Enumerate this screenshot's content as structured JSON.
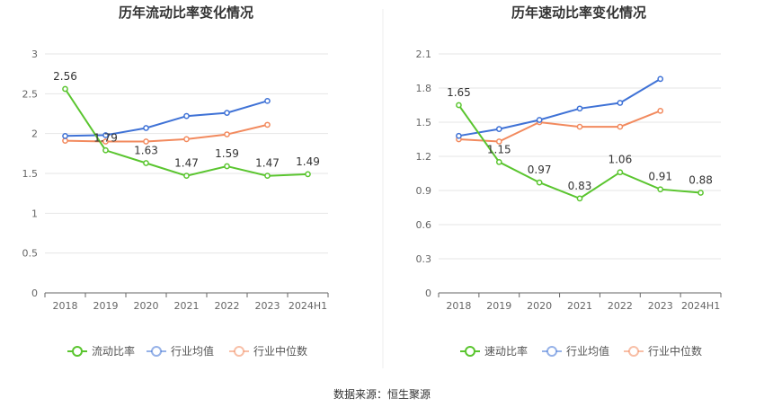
{
  "source_label": "数据来源：恒生聚源",
  "chart_data": [
    {
      "type": "line",
      "title": "历年流动比率变化情况",
      "categories": [
        "2018",
        "2019",
        "2020",
        "2021",
        "2022",
        "2023",
        "2024H1"
      ],
      "ylim": [
        0,
        3
      ],
      "yticks": [
        "0",
        "0.5",
        "1",
        "1.5",
        "2",
        "2.5",
        "3"
      ],
      "grid": true,
      "legend_position": "bottom",
      "series": [
        {
          "name": "流动比率",
          "color": "#5ac52f",
          "values": [
            2.56,
            1.79,
            1.63,
            1.47,
            1.59,
            1.47,
            1.49
          ],
          "labels": [
            "2.56",
            "1.79",
            "1.63",
            "1.47",
            "1.59",
            "1.47",
            "1.49"
          ]
        },
        {
          "name": "行业均值",
          "color": "#3f72d6",
          "values": [
            1.97,
            1.98,
            2.07,
            2.22,
            2.26,
            2.41,
            null
          ]
        },
        {
          "name": "行业中位数",
          "color": "#f28a5e",
          "values": [
            1.91,
            1.9,
            1.9,
            1.93,
            1.99,
            2.11,
            null
          ]
        }
      ]
    },
    {
      "type": "line",
      "title": "历年速动比率变化情况",
      "categories": [
        "2018",
        "2019",
        "2020",
        "2021",
        "2022",
        "2023",
        "2024H1"
      ],
      "ylim": [
        0,
        2.1
      ],
      "yticks": [
        "0",
        "0.3",
        "0.6",
        "0.9",
        "1.2",
        "1.5",
        "1.8",
        "2.1"
      ],
      "grid": true,
      "legend_position": "bottom",
      "series": [
        {
          "name": "速动比率",
          "color": "#5ac52f",
          "values": [
            1.65,
            1.15,
            0.97,
            0.83,
            1.06,
            0.91,
            0.88
          ],
          "labels": [
            "1.65",
            "1.15",
            "0.97",
            "0.83",
            "1.06",
            "0.91",
            "0.88"
          ]
        },
        {
          "name": "行业均值",
          "color": "#3f72d6",
          "values": [
            1.38,
            1.44,
            1.52,
            1.62,
            1.67,
            1.88,
            null
          ]
        },
        {
          "name": "行业中位数",
          "color": "#f28a5e",
          "values": [
            1.35,
            1.33,
            1.5,
            1.46,
            1.46,
            1.6,
            null
          ]
        }
      ]
    }
  ]
}
